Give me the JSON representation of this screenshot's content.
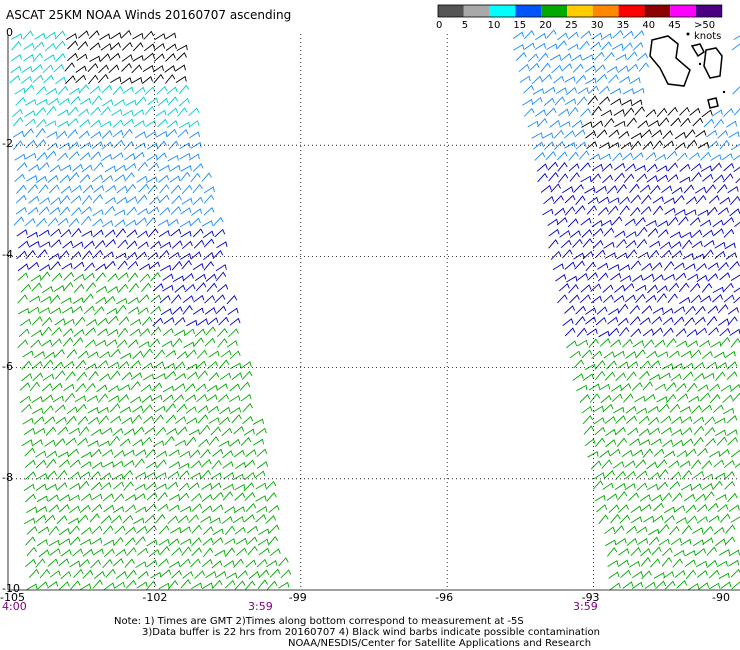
{
  "title": "ASCAT 25KM NOAA Winds 20160707 ascending",
  "legend": {
    "labels": [
      "0",
      "5",
      "10",
      "15",
      "20",
      "25",
      "30",
      "35",
      "40",
      "45",
      ">50 knots"
    ],
    "colors": [
      "#555555",
      "#a8a8a8",
      "#00ffff",
      "#0055ff",
      "#00aa00",
      "#ffcc00",
      "#ff8800",
      "#ff0000",
      "#8b0000",
      "#ff00ff",
      "#4b0082"
    ]
  },
  "axes": {
    "x_ticks": [
      "-105",
      "-102",
      "-99",
      "-96",
      "-93",
      "-90"
    ],
    "y_ticks": [
      "0",
      "-2",
      "-4",
      "-6",
      "-8",
      "-10"
    ],
    "x_range": [
      -105,
      -90
    ],
    "y_range": [
      -10,
      0
    ]
  },
  "times": {
    "left_start": "4:00",
    "swath1_end": "3:59",
    "swath2_end": "3:59"
  },
  "notes": {
    "line1": "Note: 1) Times are GMT 2)Times along bottom correspond to measurement at -5S",
    "line2": "3)Data buffer is 22 hrs from 20160707 4) Black wind barbs indicate possible contamination",
    "line3": "NOAA/NESDIS/Center for Satellite Applications and Research"
  },
  "barb_colors": {
    "contaminated": "#000000",
    "cyan": "#00cccc",
    "lightblue": "#1a8cff",
    "blue": "#0000cc",
    "green": "#00aa00"
  }
}
